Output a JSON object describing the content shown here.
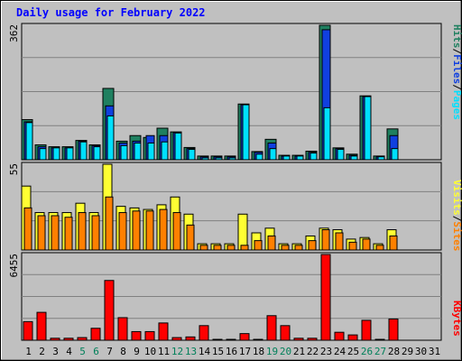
{
  "title": "Daily usage for February 2022",
  "colors": {
    "background": "#C0C0C0",
    "grid": "#808080",
    "title": "#0000FF",
    "hits": "#1F8060",
    "files": "#1040E0",
    "pages": "#00E0FF",
    "visits": "#FFFF33",
    "sites": "#FF8000",
    "kbytes": "#FF0000",
    "weekend_label": "#00805A",
    "day_label": "#000000"
  },
  "y_max_labels": {
    "hits_panel": "362",
    "visits_panel": "55",
    "kbytes_panel": "6455"
  },
  "legend": {
    "top": {
      "pages": "Pages",
      "sep1": "/",
      "files": "Files",
      "sep2": "/",
      "hits": "Hits"
    },
    "middle": {
      "sites": "Sites",
      "sep": "/",
      "visits": "Visits"
    },
    "bottom": {
      "kbytes": "KBytes"
    }
  },
  "chart_data": {
    "type": "bar",
    "title": "Daily usage for February 2022",
    "x": [
      "1",
      "2",
      "3",
      "4",
      "5",
      "6",
      "7",
      "8",
      "9",
      "10",
      "11",
      "12",
      "13",
      "14",
      "15",
      "16",
      "17",
      "18",
      "19",
      "20",
      "21",
      "22",
      "23",
      "24",
      "25",
      "26",
      "27",
      "28",
      "29",
      "30",
      "31"
    ],
    "weekend_days": [
      "5",
      "6",
      "12",
      "13",
      "19",
      "20",
      "26",
      "27"
    ],
    "panels": [
      {
        "name": "hits_files_pages",
        "ylim": [
          0,
          362
        ],
        "series": [
          {
            "name": "Hits",
            "values": [
              108,
              40,
              35,
              35,
              52,
              40,
              192,
              50,
              65,
              60,
              85,
              75,
              33,
              10,
              10,
              10,
              150,
              22,
              55,
              12,
              12,
              23,
              362,
              32,
              15,
              172,
              10,
              83,
              0,
              0,
              0
            ]
          },
          {
            "name": "Files",
            "values": [
              102,
              35,
              32,
              32,
              50,
              38,
              145,
              45,
              50,
              65,
              65,
              73,
              30,
              8,
              8,
              8,
              148,
              20,
              45,
              10,
              10,
              20,
              350,
              30,
              12,
              170,
              8,
              65,
              0,
              0,
              0
            ]
          },
          {
            "name": "Pages",
            "values": [
              100,
              30,
              32,
              32,
              48,
              35,
              118,
              38,
              45,
              45,
              48,
              72,
              28,
              5,
              5,
              5,
              148,
              15,
              30,
              10,
              10,
              18,
              140,
              28,
              10,
              170,
              8,
              30,
              0,
              0,
              0
            ]
          }
        ]
      },
      {
        "name": "visits_sites",
        "ylim": [
          0,
          55
        ],
        "series": [
          {
            "name": "Visits",
            "values": [
              41,
              24,
              24,
              24,
              30,
              24,
              55,
              28,
              27,
              26,
              29,
              34,
              23,
              4,
              4,
              4,
              23,
              11,
              14,
              4,
              4,
              9,
              14,
              13,
              7,
              8,
              4,
              13,
              0,
              0,
              0
            ]
          },
          {
            "name": "Sites",
            "values": [
              27,
              22,
              22,
              21,
              24,
              22,
              34,
              24,
              25,
              25,
              26,
              24,
              16,
              3,
              3,
              3,
              3,
              6,
              9,
              3,
              3,
              6,
              13,
              11,
              5,
              7,
              3,
              9,
              0,
              0,
              0
            ]
          }
        ]
      },
      {
        "name": "kbytes",
        "ylim": [
          0,
          6455
        ],
        "series": [
          {
            "name": "KBytes",
            "values": [
              1400,
              2100,
              150,
              150,
              200,
              900,
              4500,
              1700,
              650,
              650,
              1300,
              200,
              250,
              1100,
              50,
              50,
              500,
              50,
              1850,
              1100,
              150,
              150,
              6455,
              600,
              400,
              1500,
              50,
              1600,
              0,
              0,
              0
            ]
          }
        ]
      }
    ]
  }
}
